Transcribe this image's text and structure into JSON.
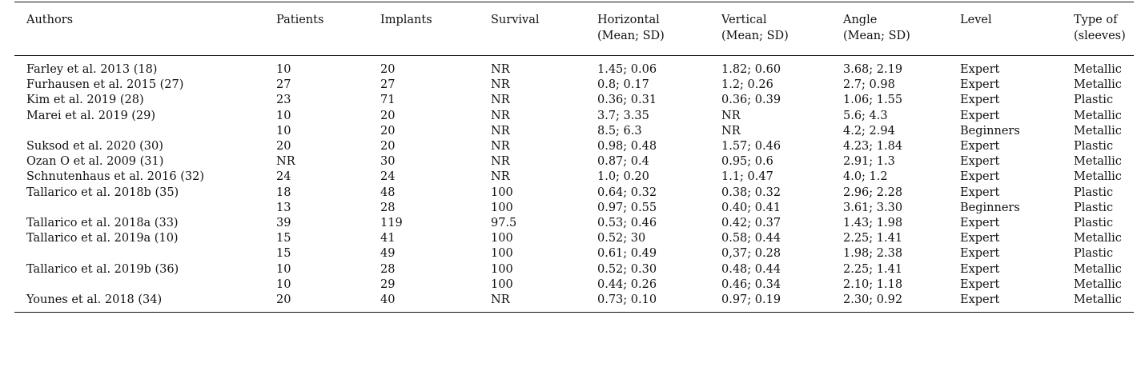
{
  "table": {
    "headers": [
      [
        "Authors"
      ],
      [
        "Patients"
      ],
      [
        "Implants"
      ],
      [
        "Survival"
      ],
      [
        "Horizontal",
        "(Mean; SD)"
      ],
      [
        "Vertical",
        "(Mean; SD)"
      ],
      [
        "Angle",
        "(Mean; SD)"
      ],
      [
        "Level"
      ],
      [
        "Type of",
        "(sleeves)"
      ]
    ],
    "rows": [
      [
        "Farley et al. 2013 (18)",
        "10",
        "20",
        "NR",
        "1.45; 0.06",
        "1.82; 0.60",
        "3.68; 2.19",
        "Expert",
        "Metallic"
      ],
      [
        "Furhausen et al. 2015 (27)",
        "27",
        "27",
        "NR",
        "0.8; 0.17",
        "1.2; 0.26",
        "2.7; 0.98",
        "Expert",
        "Metallic"
      ],
      [
        "Kim et al. 2019 (28)",
        "23",
        "71",
        "NR",
        "0.36; 0.31",
        "0.36; 0.39",
        "1.06; 1.55",
        "Expert",
        "Plastic"
      ],
      [
        "Marei et al. 2019 (29)",
        "10",
        "20",
        "NR",
        "3.7; 3.35",
        "NR",
        "5.6; 4.3",
        "Expert",
        "Metallic"
      ],
      [
        "",
        "10",
        "20",
        "NR",
        "8.5; 6.3",
        "NR",
        "4.2; 2.94",
        "Beginners",
        "Metallic"
      ],
      [
        "Suksod et al. 2020 (30)",
        "20",
        "20",
        "NR",
        "0.98; 0.48",
        "1.57; 0.46",
        "4.23; 1.84",
        "Expert",
        "Plastic"
      ],
      [
        "Ozan O et al. 2009 (31)",
        "NR",
        "30",
        "NR",
        "0.87; 0.4",
        "0.95; 0.6",
        "2.91; 1.3",
        "Expert",
        "Metallic"
      ],
      [
        "Schnutenhaus et al. 2016 (32)",
        "24",
        "24",
        "NR",
        "1.0; 0.20",
        "1.1; 0.47",
        "4.0; 1.2",
        "Expert",
        "Metallic"
      ],
      [
        "Tallarico et al. 2018b (35)",
        "18",
        "48",
        "100",
        "0.64; 0.32",
        "0.38; 0.32",
        "2.96; 2.28",
        "Expert",
        "Plastic"
      ],
      [
        "",
        "13",
        "28",
        "100",
        "0.97; 0.55",
        "0.40; 0.41",
        "3.61; 3.30",
        "Beginners",
        "Plastic"
      ],
      [
        "Tallarico et al. 2018a (33)",
        "39",
        "119",
        "97.5",
        "0.53; 0.46",
        "0.42; 0.37",
        "1.43; 1.98",
        "Expert",
        "Plastic"
      ],
      [
        "Tallarico et al. 2019a (10)",
        "15",
        "41",
        "100",
        "0.52; 30",
        "0.58; 0.44",
        "2.25; 1.41",
        "Expert",
        "Metallic"
      ],
      [
        "",
        "15",
        "49",
        "100",
        "0.61; 0.49",
        "0,37; 0.28",
        "1.98; 2.38",
        "Expert",
        "Plastic"
      ],
      [
        "Tallarico et al. 2019b (36)",
        "10",
        "28",
        "100",
        "0.52; 0.30",
        "0.48; 0.44",
        "2.25; 1.41",
        "Expert",
        "Metallic"
      ],
      [
        "",
        "10",
        "29",
        "100",
        "0.44; 0.26",
        "0.46; 0.34",
        "2.10; 1.18",
        "Expert",
        "Metallic"
      ],
      [
        "Younes et al. 2018 (34)",
        "20",
        "40",
        "NR",
        "0.73; 0.10",
        "0.97; 0.19",
        "2.30; 0.92",
        "Expert",
        "Metallic"
      ]
    ]
  }
}
